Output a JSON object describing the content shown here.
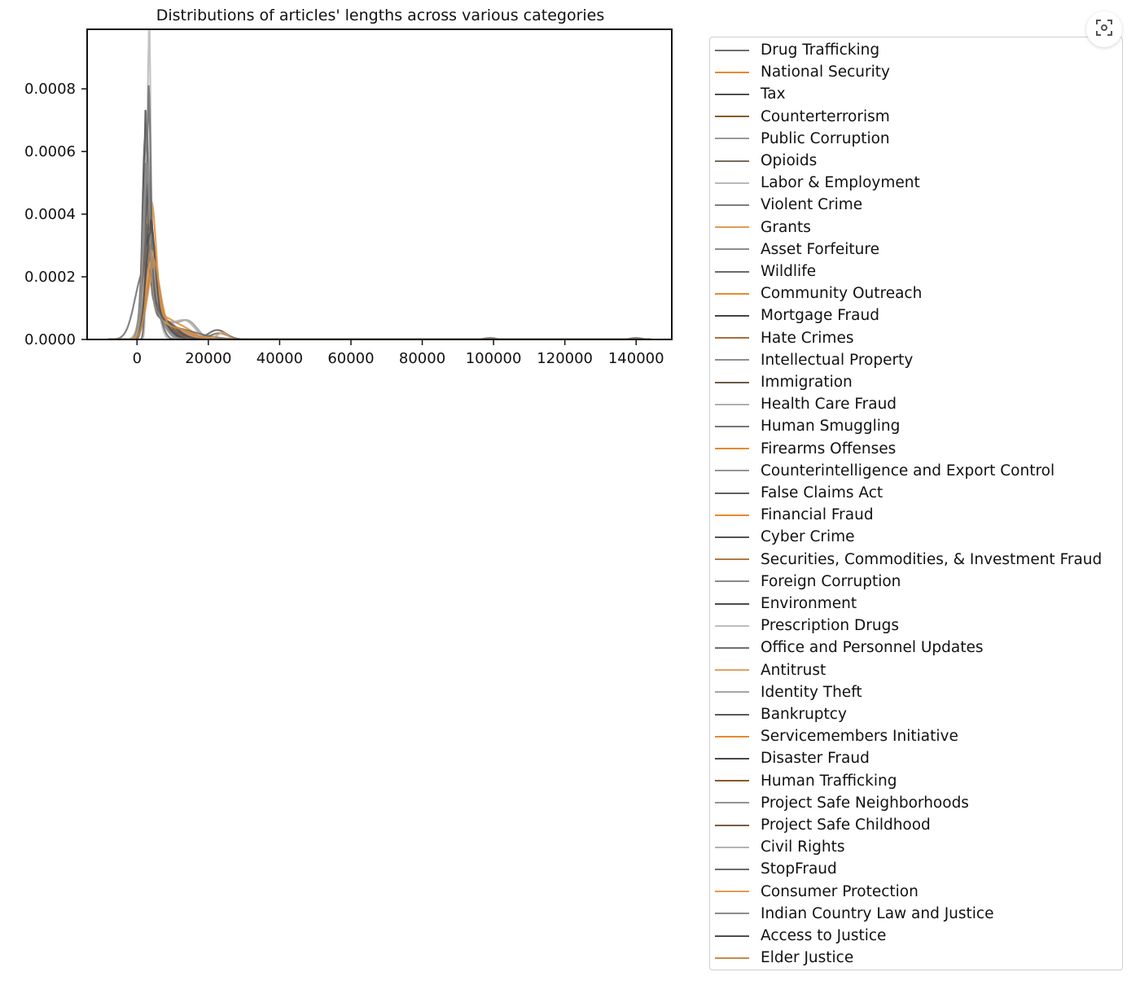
{
  "chart_data": {
    "type": "line",
    "title": "Distributions of articles' lengths across various categories",
    "xlabel": "",
    "ylabel": "",
    "xlim": [
      -14000,
      150000
    ],
    "ylim": [
      0,
      0.00099
    ],
    "x_ticks": [
      0,
      20000,
      40000,
      60000,
      80000,
      100000,
      120000,
      140000
    ],
    "x_tick_labels": [
      "0",
      "20000",
      "40000",
      "60000",
      "80000",
      "100000",
      "120000",
      "140000"
    ],
    "y_ticks": [
      0,
      0.0002,
      0.0004,
      0.0006,
      0.0008
    ],
    "y_tick_labels": [
      "0.0000",
      "0.0002",
      "0.0004",
      "0.0006",
      "0.0008"
    ],
    "grid": false,
    "legend_position": "outside right",
    "series": [
      {
        "name": "Drug Trafficking",
        "color": "#6e6e6e",
        "peak_x": 2500,
        "peak_y": 0.00062,
        "width": 900,
        "bumps": [
          [
            23000,
            2e-05,
            2500
          ]
        ]
      },
      {
        "name": "National Security",
        "color": "#e8892e",
        "peak_x": 4000,
        "peak_y": 0.00039,
        "width": 1300,
        "bumps": [
          [
            14000,
            2e-05,
            2500
          ]
        ]
      },
      {
        "name": "Tax",
        "color": "#4f4f4f",
        "peak_x": 2300,
        "peak_y": 0.00065,
        "width": 800,
        "bumps": [
          [
            12000,
            2e-05,
            2500
          ]
        ]
      },
      {
        "name": "Counterterrorism",
        "color": "#8a5a2b",
        "peak_x": 3000,
        "peak_y": 0.0003,
        "width": 1500,
        "bumps": []
      },
      {
        "name": "Public Corruption",
        "color": "#9a9a9a",
        "peak_x": 3000,
        "peak_y": 0.00035,
        "width": 1400,
        "bumps": [
          [
            14500,
            5e-05,
            2500
          ]
        ]
      },
      {
        "name": "Opioids",
        "color": "#7a6a5a",
        "peak_x": 2700,
        "peak_y": 0.00045,
        "width": 1000,
        "bumps": []
      },
      {
        "name": "Labor & Employment",
        "color": "#b8b8b8",
        "peak_x": 3300,
        "peak_y": 0.00094,
        "width": 500,
        "bumps": []
      },
      {
        "name": "Violent Crime",
        "color": "#7d7d7d",
        "peak_x": 2400,
        "peak_y": 0.0005,
        "width": 1000,
        "bumps": []
      },
      {
        "name": "Grants",
        "color": "#e39a55",
        "peak_x": 4200,
        "peak_y": 0.00028,
        "width": 1500,
        "bumps": []
      },
      {
        "name": "Asset Forfeiture",
        "color": "#8c8c8c",
        "peak_x": 3000,
        "peak_y": 0.0004,
        "width": 1200,
        "bumps": []
      },
      {
        "name": "Wildlife",
        "color": "#6a6a6a",
        "peak_x": 3500,
        "peak_y": 0.00035,
        "width": 1300,
        "bumps": []
      },
      {
        "name": "Community Outreach",
        "color": "#e8892e",
        "peak_x": 4500,
        "peak_y": 0.00022,
        "width": 1800,
        "bumps": []
      },
      {
        "name": "Mortgage Fraud",
        "color": "#444444",
        "peak_x": 2800,
        "peak_y": 0.00048,
        "width": 1000,
        "bumps": []
      },
      {
        "name": "Hate Crimes",
        "color": "#a3703c",
        "peak_x": 3800,
        "peak_y": 0.00026,
        "width": 1500,
        "bumps": []
      },
      {
        "name": "Intellectual Property",
        "color": "#8e8e8e",
        "peak_x": 3200,
        "peak_y": 0.0004,
        "width": 1200,
        "bumps": []
      },
      {
        "name": "Immigration",
        "color": "#6b5a48",
        "peak_x": 2600,
        "peak_y": 0.0004,
        "width": 1100,
        "bumps": []
      },
      {
        "name": "Health Care Fraud",
        "color": "#b0b0b0",
        "peak_x": 3100,
        "peak_y": 0.0003,
        "width": 1600,
        "bumps": [
          [
            14000,
            4e-05,
            2500
          ]
        ]
      },
      {
        "name": "Human Smuggling",
        "color": "#767676",
        "peak_x": 2500,
        "peak_y": 0.00042,
        "width": 1100,
        "bumps": []
      },
      {
        "name": "Firearms Offenses",
        "color": "#e8892e",
        "peak_x": 4100,
        "peak_y": 0.00024,
        "width": 1600,
        "bumps": []
      },
      {
        "name": "Counterintelligence and Export Control",
        "color": "#959595",
        "peak_x": 3600,
        "peak_y": 0.00034,
        "width": 1400,
        "bumps": []
      },
      {
        "name": "False Claims Act",
        "color": "#5f5f5f",
        "peak_x": 3400,
        "peak_y": 0.00036,
        "width": 1300,
        "bumps": [
          [
            22500,
            3e-05,
            2500
          ]
        ]
      },
      {
        "name": "Financial Fraud",
        "color": "#e8892e",
        "peak_x": 4300,
        "peak_y": 0.00022,
        "width": 1700,
        "bumps": []
      },
      {
        "name": "Cyber Crime",
        "color": "#525252",
        "peak_x": 3200,
        "peak_y": 0.00045,
        "width": 1100,
        "bumps": []
      },
      {
        "name": "Securities, Commodities, & Investment Fraud",
        "color": "#b07a45",
        "peak_x": 3700,
        "peak_y": 0.00027,
        "width": 1500,
        "bumps": []
      },
      {
        "name": "Foreign Corruption",
        "color": "#888888",
        "peak_x": 3900,
        "peak_y": 0.0003,
        "width": 1400,
        "bumps": []
      },
      {
        "name": "Environment",
        "color": "#4a4a4a",
        "peak_x": 3300,
        "peak_y": 0.00033,
        "width": 1300,
        "bumps": []
      },
      {
        "name": "Prescription Drugs",
        "color": "#bdbdbd",
        "peak_x": 2900,
        "peak_y": 0.00038,
        "width": 1200,
        "bumps": []
      },
      {
        "name": "Office and Personnel Updates",
        "color": "#6f6f6f",
        "peak_x": 2000,
        "peak_y": 0.00022,
        "width": 2500,
        "bumps": [
          [
            99000,
            5e-06,
            1500
          ],
          [
            140000,
            5e-06,
            1500
          ]
        ]
      },
      {
        "name": "Antitrust",
        "color": "#e3a060",
        "peak_x": 4600,
        "peak_y": 0.00021,
        "width": 1800,
        "bumps": [
          [
            24000,
            2e-05,
            1500
          ]
        ]
      },
      {
        "name": "Identity Theft",
        "color": "#a6a6a6",
        "peak_x": 2700,
        "peak_y": 0.00048,
        "width": 1000,
        "bumps": []
      },
      {
        "name": "Bankruptcy",
        "color": "#5a5a5a",
        "peak_x": 3000,
        "peak_y": 0.00042,
        "width": 1100,
        "bumps": []
      },
      {
        "name": "Servicemembers Initiative",
        "color": "#e8892e",
        "peak_x": 4200,
        "peak_y": 0.0002,
        "width": 1800,
        "bumps": []
      },
      {
        "name": "Disaster Fraud",
        "color": "#474747",
        "peak_x": 2900,
        "peak_y": 0.00044,
        "width": 1000,
        "bumps": []
      },
      {
        "name": "Human Trafficking",
        "color": "#8a5a2b",
        "peak_x": 3500,
        "peak_y": 0.00029,
        "width": 1400,
        "bumps": []
      },
      {
        "name": "Project Safe Neighborhoods",
        "color": "#939393",
        "peak_x": 2800,
        "peak_y": 0.00055,
        "width": 800,
        "bumps": []
      },
      {
        "name": "Project Safe Childhood",
        "color": "#7a5c45",
        "peak_x": 3100,
        "peak_y": 0.00037,
        "width": 1200,
        "bumps": []
      },
      {
        "name": "Civil Rights",
        "color": "#b3b3b3",
        "peak_x": 3400,
        "peak_y": 0.00031,
        "width": 1400,
        "bumps": []
      },
      {
        "name": "StopFraud",
        "color": "#6a6a6a",
        "peak_x": 3200,
        "peak_y": 0.00072,
        "width": 600,
        "bumps": []
      },
      {
        "name": "Consumer Protection",
        "color": "#e39a55",
        "peak_x": 4000,
        "peak_y": 0.00025,
        "width": 1600,
        "bumps": []
      },
      {
        "name": "Indian Country Law and Justice",
        "color": "#8c8c8c",
        "peak_x": 2600,
        "peak_y": 0.0005,
        "width": 900,
        "bumps": []
      },
      {
        "name": "Access to Justice",
        "color": "#4d4d4d",
        "peak_x": 3700,
        "peak_y": 0.00034,
        "width": 1300,
        "bumps": []
      },
      {
        "name": "Elder Justice",
        "color": "#c58a4a",
        "peak_x": 4400,
        "peak_y": 0.00023,
        "width": 1700,
        "bumps": []
      }
    ]
  },
  "toolbar": {
    "expand_icon": "expand-icon"
  }
}
